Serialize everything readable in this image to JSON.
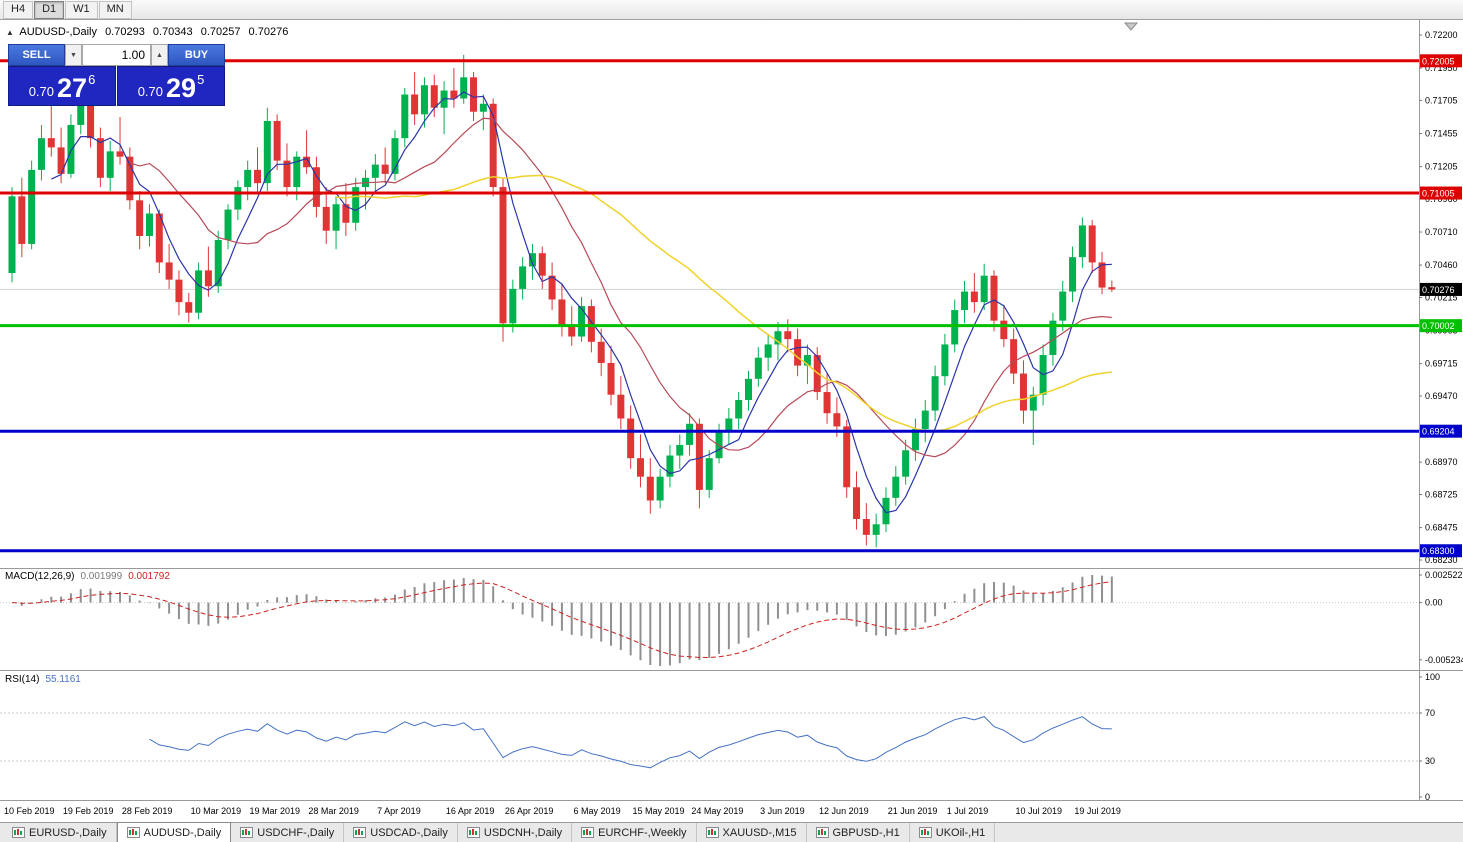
{
  "toolbar": {
    "timeframes": [
      {
        "label": "H4"
      },
      {
        "label": "D1"
      },
      {
        "label": "W1"
      },
      {
        "label": "MN"
      }
    ],
    "active": "D1"
  },
  "icons": {
    "title_marker": "▲",
    "spinner_down": "▼",
    "spinner_up": "▲"
  },
  "chart_header": {
    "symbol": "AUDUSD-,Daily",
    "open": "0.70293",
    "high": "0.70343",
    "low": "0.70257",
    "close": "0.70276"
  },
  "trade_panel": {
    "sell_label": "SELL",
    "buy_label": "BUY",
    "volume": "1.00",
    "sell_price": {
      "base": "0.70",
      "big": "27",
      "sup": "6"
    },
    "buy_price": {
      "base": "0.70",
      "big": "29",
      "sup": "5"
    }
  },
  "price_axis": {
    "ticks": [
      "0.72200",
      "0.71950",
      "0.71705",
      "0.71455",
      "0.71205",
      "0.70960",
      "0.70710",
      "0.70460",
      "0.70215",
      "0.69965",
      "0.69715",
      "0.69470",
      "0.69220",
      "0.68970",
      "0.68725",
      "0.68475",
      "0.68230"
    ]
  },
  "macd_panel": {
    "title": "MACD(12,26,9)",
    "value_main": "0.001999",
    "value_signal": "0.001792",
    "axis": [
      {
        "label": "0.002522",
        "value": 0.002522
      },
      {
        "label": "0.00",
        "value": 0
      },
      {
        "label": "-0.005234",
        "value": -0.005234
      }
    ]
  },
  "rsi_panel": {
    "title": "RSI(14)",
    "value": "55.1161",
    "axis": [
      {
        "label": "100",
        "value": 100
      },
      {
        "label": "70",
        "value": 70
      },
      {
        "label": "30",
        "value": 30
      },
      {
        "label": "0",
        "value": 0
      }
    ],
    "levels": [
      70,
      30
    ]
  },
  "date_axis": {
    "labels": [
      {
        "text": "10 Feb 2019",
        "index": 0
      },
      {
        "text": "19 Feb 2019",
        "index": 6
      },
      {
        "text": "28 Feb 2019",
        "index": 12
      },
      {
        "text": "10 Mar 2019",
        "index": 19
      },
      {
        "text": "19 Mar 2019",
        "index": 25
      },
      {
        "text": "28 Mar 2019",
        "index": 31
      },
      {
        "text": "7 Apr 2019",
        "index": 38
      },
      {
        "text": "16 Apr 2019",
        "index": 45
      },
      {
        "text": "26 Apr 2019",
        "index": 51
      },
      {
        "text": "6 May 2019",
        "index": 58
      },
      {
        "text": "15 May 2019",
        "index": 64
      },
      {
        "text": "24 May 2019",
        "index": 70
      },
      {
        "text": "3 Jun 2019",
        "index": 77
      },
      {
        "text": "12 Jun 2019",
        "index": 83
      },
      {
        "text": "21 Jun 2019",
        "index": 90
      },
      {
        "text": "1 Jul 2019",
        "index": 96
      },
      {
        "text": "10 Jul 2019",
        "index": 103
      },
      {
        "text": "19 Jul 2019",
        "index": 109
      }
    ]
  },
  "tabs": {
    "items": [
      {
        "label": "EURUSD-,Daily"
      },
      {
        "label": "AUDUSD-,Daily",
        "active": true
      },
      {
        "label": "USDCHF-,Daily"
      },
      {
        "label": "USDCAD-,Daily"
      },
      {
        "label": "USDCNH-,Daily"
      },
      {
        "label": "EURCHF-,Weekly"
      },
      {
        "label": "XAUUSD-,M15"
      },
      {
        "label": "GBPUSD-,H1"
      },
      {
        "label": "UKOil-,H1"
      }
    ]
  },
  "colors": {
    "bull": "#00b14f",
    "bear": "#e03535",
    "ma_fast": "#2b35a8",
    "ma_mid": "#b84a58",
    "ma_slow": "#f0d22a",
    "macd_histogram": "#909090",
    "macd_signal": "#cc2222",
    "rsi_line": "#4472c4",
    "current_price_badge": "#000000"
  },
  "chart_data": {
    "type": "candlestick",
    "symbol": "AUDUSD",
    "timeframe": "Daily",
    "price_range": [
      0.6823,
      0.722
    ],
    "current_price": {
      "value": 0.70276,
      "label": "0.70276"
    },
    "levels": [
      {
        "price": 0.72005,
        "label": "0.72005",
        "color": "#dd0000",
        "width": 3
      },
      {
        "price": 0.71005,
        "label": "0.71005",
        "color": "#dd0000",
        "width": 3
      },
      {
        "price": 0.70002,
        "label": "0.70002",
        "color": "#00c000",
        "width": 3
      },
      {
        "price": 0.69204,
        "label": "0.69204",
        "color": "#0000cc",
        "width": 3
      },
      {
        "price": 0.683,
        "label": "0.68300",
        "color": "#0000cc",
        "width": 3
      }
    ],
    "overlays": [
      {
        "name": "ma-fast",
        "type": "sma",
        "period": 5,
        "color": "#2b35a8",
        "width": 1.2
      },
      {
        "name": "ma-mid",
        "type": "sma",
        "period": 13,
        "color": "#b84a58",
        "width": 1.2
      },
      {
        "name": "ma-slow",
        "type": "sma",
        "period": 34,
        "color": "#f0d22a",
        "width": 1.5
      }
    ],
    "indicators": [
      {
        "name": "MACD",
        "params": [
          12,
          26,
          9
        ],
        "values": [
          0.001999,
          0.001792
        ]
      },
      {
        "name": "RSI",
        "params": [
          14
        ],
        "values": [
          55.1161
        ]
      }
    ],
    "candles": [
      [
        0.704,
        0.7105,
        0.7033,
        0.7098
      ],
      [
        0.7098,
        0.7112,
        0.7052,
        0.7062
      ],
      [
        0.7062,
        0.7125,
        0.7058,
        0.7118
      ],
      [
        0.7118,
        0.7152,
        0.711,
        0.7142
      ],
      [
        0.7142,
        0.7172,
        0.7128,
        0.7135
      ],
      [
        0.7135,
        0.715,
        0.7108,
        0.7115
      ],
      [
        0.7115,
        0.716,
        0.7112,
        0.7152
      ],
      [
        0.7152,
        0.7178,
        0.7145,
        0.7172
      ],
      [
        0.7172,
        0.7176,
        0.7135,
        0.7142
      ],
      [
        0.7142,
        0.715,
        0.7105,
        0.7112
      ],
      [
        0.7112,
        0.714,
        0.7102,
        0.7132
      ],
      [
        0.7132,
        0.7158,
        0.7122,
        0.7128
      ],
      [
        0.7128,
        0.7135,
        0.7088,
        0.7095
      ],
      [
        0.7095,
        0.7102,
        0.7058,
        0.7068
      ],
      [
        0.7068,
        0.7092,
        0.706,
        0.7085
      ],
      [
        0.7085,
        0.7088,
        0.704,
        0.7048
      ],
      [
        0.7048,
        0.7062,
        0.7028,
        0.7035
      ],
      [
        0.7035,
        0.7042,
        0.7008,
        0.7018
      ],
      [
        0.7018,
        0.7025,
        0.70025,
        0.701
      ],
      [
        0.701,
        0.7048,
        0.7005,
        0.7042
      ],
      [
        0.7042,
        0.706,
        0.7022,
        0.703
      ],
      [
        0.703,
        0.7072,
        0.7025,
        0.7065
      ],
      [
        0.7065,
        0.7092,
        0.7058,
        0.7088
      ],
      [
        0.7088,
        0.711,
        0.708,
        0.7105
      ],
      [
        0.7105,
        0.7125,
        0.7095,
        0.7118
      ],
      [
        0.7118,
        0.7135,
        0.71,
        0.7108
      ],
      [
        0.7108,
        0.7165,
        0.7102,
        0.7155
      ],
      [
        0.7155,
        0.716,
        0.7118,
        0.7125
      ],
      [
        0.7125,
        0.7138,
        0.7098,
        0.7105
      ],
      [
        0.7105,
        0.7132,
        0.7095,
        0.7128
      ],
      [
        0.7128,
        0.7148,
        0.7115,
        0.712
      ],
      [
        0.712,
        0.7128,
        0.7082,
        0.709
      ],
      [
        0.709,
        0.7105,
        0.7062,
        0.7072
      ],
      [
        0.7072,
        0.7098,
        0.7058,
        0.7092
      ],
      [
        0.7092,
        0.7108,
        0.7068,
        0.7078
      ],
      [
        0.7078,
        0.7112,
        0.7072,
        0.7105
      ],
      [
        0.7105,
        0.7118,
        0.7088,
        0.7112
      ],
      [
        0.7112,
        0.713,
        0.71,
        0.7122
      ],
      [
        0.7122,
        0.7135,
        0.7108,
        0.7115
      ],
      [
        0.7115,
        0.7148,
        0.711,
        0.7142
      ],
      [
        0.7142,
        0.718,
        0.7135,
        0.7175
      ],
      [
        0.7175,
        0.7192,
        0.7152,
        0.716
      ],
      [
        0.716,
        0.7188,
        0.715,
        0.7182
      ],
      [
        0.7182,
        0.719,
        0.7158,
        0.7165
      ],
      [
        0.7165,
        0.7185,
        0.7145,
        0.7178
      ],
      [
        0.7178,
        0.7195,
        0.7165,
        0.7172
      ],
      [
        0.7172,
        0.7205,
        0.7168,
        0.7188
      ],
      [
        0.7188,
        0.7192,
        0.7155,
        0.7162
      ],
      [
        0.7162,
        0.7175,
        0.7148,
        0.7168
      ],
      [
        0.7168,
        0.7172,
        0.7098,
        0.7105
      ],
      [
        0.7105,
        0.7112,
        0.6988,
        0.7002
      ],
      [
        0.7002,
        0.7035,
        0.6995,
        0.7028
      ],
      [
        0.7028,
        0.7052,
        0.702,
        0.7045
      ],
      [
        0.7045,
        0.7062,
        0.7035,
        0.7055
      ],
      [
        0.7055,
        0.706,
        0.7028,
        0.7038
      ],
      [
        0.7038,
        0.7048,
        0.7012,
        0.702
      ],
      [
        0.702,
        0.7032,
        0.6992,
        0.7
      ],
      [
        0.7,
        0.7015,
        0.6985,
        0.6992
      ],
      [
        0.6992,
        0.7022,
        0.6988,
        0.7015
      ],
      [
        0.7015,
        0.702,
        0.698,
        0.6988
      ],
      [
        0.6988,
        0.6998,
        0.6962,
        0.6972
      ],
      [
        0.6972,
        0.6985,
        0.694,
        0.6948
      ],
      [
        0.6948,
        0.6962,
        0.6922,
        0.693
      ],
      [
        0.693,
        0.694,
        0.6892,
        0.69
      ],
      [
        0.69,
        0.6918,
        0.6878,
        0.6886
      ],
      [
        0.6886,
        0.69,
        0.6858,
        0.6868
      ],
      [
        0.6868,
        0.6892,
        0.6862,
        0.6886
      ],
      [
        0.6886,
        0.691,
        0.6878,
        0.6902
      ],
      [
        0.6902,
        0.6918,
        0.6892,
        0.691
      ],
      [
        0.691,
        0.6934,
        0.6902,
        0.6926
      ],
      [
        0.6926,
        0.693,
        0.6862,
        0.6876
      ],
      [
        0.6876,
        0.6906,
        0.687,
        0.69
      ],
      [
        0.69,
        0.6926,
        0.6896,
        0.692
      ],
      [
        0.692,
        0.6938,
        0.691,
        0.693
      ],
      [
        0.693,
        0.695,
        0.6922,
        0.6944
      ],
      [
        0.6944,
        0.6966,
        0.6936,
        0.696
      ],
      [
        0.696,
        0.6984,
        0.6954,
        0.6976
      ],
      [
        0.6976,
        0.6994,
        0.6966,
        0.6986
      ],
      [
        0.6986,
        0.7003,
        0.6974,
        0.6996
      ],
      [
        0.6996,
        0.7005,
        0.698,
        0.699
      ],
      [
        0.699,
        0.6998,
        0.6962,
        0.697
      ],
      [
        0.697,
        0.6986,
        0.6956,
        0.6978
      ],
      [
        0.6978,
        0.6984,
        0.6944,
        0.695
      ],
      [
        0.695,
        0.6964,
        0.6926,
        0.6934
      ],
      [
        0.6934,
        0.6946,
        0.6916,
        0.6924
      ],
      [
        0.6924,
        0.6929,
        0.687,
        0.6878
      ],
      [
        0.6878,
        0.689,
        0.6846,
        0.6854
      ],
      [
        0.6854,
        0.6866,
        0.6834,
        0.6842
      ],
      [
        0.6842,
        0.6858,
        0.68325,
        0.685
      ],
      [
        0.685,
        0.6878,
        0.6844,
        0.687
      ],
      [
        0.687,
        0.6894,
        0.6864,
        0.6886
      ],
      [
        0.6886,
        0.6914,
        0.688,
        0.6906
      ],
      [
        0.6906,
        0.693,
        0.6898,
        0.6922
      ],
      [
        0.6922,
        0.6944,
        0.6912,
        0.6936
      ],
      [
        0.6936,
        0.697,
        0.6928,
        0.6962
      ],
      [
        0.6962,
        0.6994,
        0.6955,
        0.6986
      ],
      [
        0.6986,
        0.702,
        0.698,
        0.7012
      ],
      [
        0.7012,
        0.7034,
        0.7002,
        0.7026
      ],
      [
        0.7026,
        0.704,
        0.701,
        0.7018
      ],
      [
        0.7018,
        0.7047,
        0.7012,
        0.7038
      ],
      [
        0.7038,
        0.7042,
        0.6996,
        0.7004
      ],
      [
        0.7004,
        0.7016,
        0.6984,
        0.699
      ],
      [
        0.699,
        0.6998,
        0.6956,
        0.6964
      ],
      [
        0.6964,
        0.6974,
        0.6926,
        0.6936
      ],
      [
        0.6936,
        0.6954,
        0.691,
        0.6948
      ],
      [
        0.6948,
        0.6986,
        0.694,
        0.6978
      ],
      [
        0.6978,
        0.701,
        0.697,
        0.7004
      ],
      [
        0.7004,
        0.7034,
        0.6996,
        0.7026
      ],
      [
        0.7026,
        0.706,
        0.7018,
        0.7052
      ],
      [
        0.7052,
        0.7082,
        0.7044,
        0.7076
      ],
      [
        0.7076,
        0.708,
        0.704,
        0.7048
      ],
      [
        0.7048,
        0.7056,
        0.7024,
        0.7029
      ],
      [
        0.70293,
        0.70343,
        0.70257,
        0.70276
      ]
    ]
  }
}
